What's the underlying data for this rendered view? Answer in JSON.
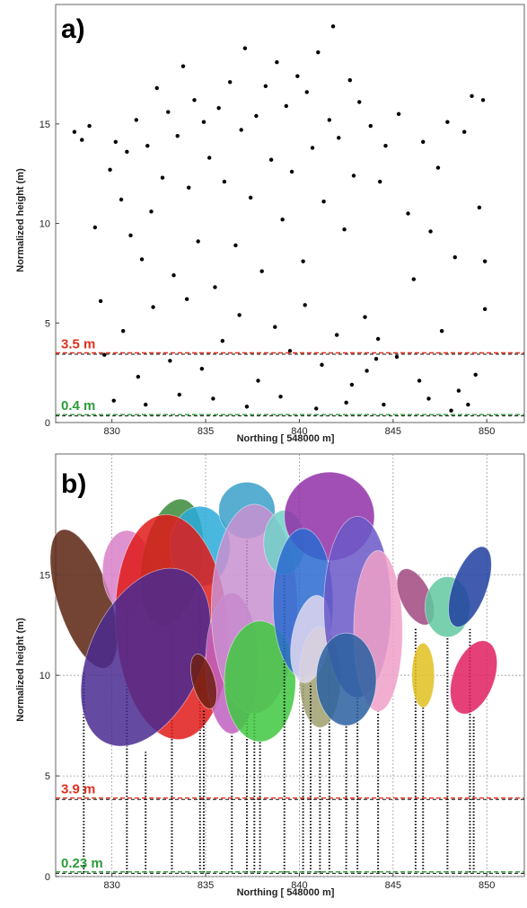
{
  "chart_data": [
    {
      "panel": "a)",
      "type": "scatter",
      "xlabel": "Northing [ 548000 m]",
      "ylabel": "Normalized height (m)",
      "xlim": [
        827,
        852
      ],
      "ylim": [
        0,
        21
      ],
      "xticks": [
        830,
        835,
        840,
        845,
        850
      ],
      "yticks": [
        0,
        5,
        10,
        15
      ],
      "grid": false,
      "point_color": "#000000",
      "thresholds": [
        {
          "label": "3.5 m",
          "value": 3.5,
          "color": "#e0301e"
        },
        {
          "label": "0.4 m",
          "value": 0.4,
          "color": "#2e9a3a"
        }
      ],
      "points": [
        [
          828.0,
          14.6
        ],
        [
          828.4,
          14.2
        ],
        [
          828.8,
          14.9
        ],
        [
          829.1,
          9.8
        ],
        [
          829.4,
          6.1
        ],
        [
          829.6,
          3.4
        ],
        [
          829.9,
          12.7
        ],
        [
          830.2,
          14.1
        ],
        [
          830.5,
          11.2
        ],
        [
          830.8,
          13.6
        ],
        [
          831.0,
          9.4
        ],
        [
          831.3,
          15.2
        ],
        [
          831.6,
          8.2
        ],
        [
          831.9,
          13.9
        ],
        [
          832.1,
          10.6
        ],
        [
          832.4,
          16.8
        ],
        [
          832.7,
          12.3
        ],
        [
          833.0,
          15.6
        ],
        [
          833.3,
          7.4
        ],
        [
          833.5,
          14.4
        ],
        [
          833.8,
          17.9
        ],
        [
          834.1,
          11.8
        ],
        [
          834.4,
          16.2
        ],
        [
          834.6,
          9.1
        ],
        [
          834.9,
          15.1
        ],
        [
          835.2,
          13.3
        ],
        [
          835.5,
          6.8
        ],
        [
          835.7,
          15.8
        ],
        [
          836.0,
          12.1
        ],
        [
          836.3,
          17.1
        ],
        [
          836.6,
          8.9
        ],
        [
          836.9,
          14.7
        ],
        [
          837.1,
          18.8
        ],
        [
          837.4,
          11.3
        ],
        [
          837.7,
          15.4
        ],
        [
          838.0,
          7.6
        ],
        [
          838.2,
          16.9
        ],
        [
          838.5,
          13.2
        ],
        [
          838.8,
          18.1
        ],
        [
          839.1,
          10.2
        ],
        [
          839.3,
          15.9
        ],
        [
          839.6,
          12.6
        ],
        [
          839.9,
          17.4
        ],
        [
          840.2,
          8.1
        ],
        [
          840.4,
          16.6
        ],
        [
          840.7,
          13.8
        ],
        [
          841.0,
          18.6
        ],
        [
          841.3,
          11.1
        ],
        [
          841.6,
          15.2
        ],
        [
          841.8,
          19.9
        ],
        [
          842.1,
          14.3
        ],
        [
          842.4,
          9.7
        ],
        [
          842.7,
          17.2
        ],
        [
          842.9,
          12.4
        ],
        [
          843.2,
          16.1
        ],
        [
          843.5,
          5.3
        ],
        [
          843.8,
          14.9
        ],
        [
          844.1,
          3.2
        ],
        [
          844.3,
          12.1
        ],
        [
          844.6,
          13.9
        ],
        [
          845.3,
          15.5
        ],
        [
          845.8,
          10.5
        ],
        [
          846.1,
          7.2
        ],
        [
          846.6,
          14.1
        ],
        [
          847.0,
          9.6
        ],
        [
          847.4,
          12.8
        ],
        [
          847.9,
          15.1
        ],
        [
          848.3,
          8.3
        ],
        [
          848.8,
          14.6
        ],
        [
          849.2,
          16.4
        ],
        [
          849.6,
          10.8
        ],
        [
          849.8,
          16.2
        ],
        [
          830.6,
          4.6
        ],
        [
          831.4,
          2.3
        ],
        [
          832.2,
          5.8
        ],
        [
          833.1,
          3.1
        ],
        [
          834.0,
          6.2
        ],
        [
          834.8,
          2.7
        ],
        [
          835.9,
          4.1
        ],
        [
          836.8,
          5.4
        ],
        [
          837.8,
          2.1
        ],
        [
          838.7,
          4.8
        ],
        [
          839.5,
          3.6
        ],
        [
          840.3,
          5.9
        ],
        [
          841.2,
          2.9
        ],
        [
          842.0,
          4.4
        ],
        [
          842.8,
          1.9
        ],
        [
          843.6,
          2.6
        ],
        [
          844.2,
          4.2
        ],
        [
          845.2,
          3.3
        ],
        [
          846.4,
          2.1
        ],
        [
          847.6,
          4.6
        ],
        [
          848.5,
          1.6
        ],
        [
          849.4,
          2.4
        ],
        [
          849.9,
          8.1
        ],
        [
          849.9,
          5.7
        ],
        [
          830.1,
          1.1
        ],
        [
          831.8,
          0.9
        ],
        [
          833.6,
          1.4
        ],
        [
          835.4,
          1.2
        ],
        [
          837.2,
          0.8
        ],
        [
          839.0,
          1.3
        ],
        [
          840.9,
          0.7
        ],
        [
          842.5,
          1.0
        ],
        [
          844.5,
          0.9
        ],
        [
          846.9,
          1.2
        ],
        [
          848.1,
          0.6
        ],
        [
          849.0,
          0.9
        ]
      ]
    },
    {
      "panel": "b)",
      "type": "scatter",
      "xlabel": "Northing [ 548000 m]",
      "ylabel": "Normalized height (m)",
      "xlim": [
        827,
        852
      ],
      "ylim": [
        0,
        21
      ],
      "xticks": [
        830,
        835,
        840,
        845,
        850
      ],
      "yticks": [
        0,
        5,
        10,
        15
      ],
      "grid": true,
      "thresholds": [
        {
          "label": "3.9 m",
          "value": 3.9,
          "color": "#e0301e"
        },
        {
          "label": "0.23 m",
          "value": 0.23,
          "color": "#2e9a3a"
        }
      ],
      "crowns": [
        {
          "cx": 828.5,
          "cy": 13.8,
          "rx": 1.4,
          "ry": 3.6,
          "rot": -18,
          "color": "#5a2310"
        },
        {
          "cx": 830.8,
          "cy": 15.2,
          "rx": 1.3,
          "ry": 2.0,
          "rot": 0,
          "color": "#d880c8"
        },
        {
          "cx": 833.2,
          "cy": 15.6,
          "rx": 1.6,
          "ry": 3.2,
          "rot": 10,
          "color": "#3a8a3a"
        },
        {
          "cx": 834.7,
          "cy": 16.4,
          "rx": 1.6,
          "ry": 2.0,
          "rot": 0,
          "color": "#2aaad8"
        },
        {
          "cx": 833.2,
          "cy": 12.4,
          "rx": 3.0,
          "ry": 5.6,
          "rot": -4,
          "color": "#e01a1a"
        },
        {
          "cx": 831.8,
          "cy": 10.9,
          "rx": 3.0,
          "ry": 4.7,
          "rot": 25,
          "color": "#4a2a90"
        },
        {
          "cx": 837.2,
          "cy": 18.2,
          "rx": 1.5,
          "ry": 1.4,
          "rot": 0,
          "color": "#3aa0c8"
        },
        {
          "cx": 836.4,
          "cy": 10.6,
          "rx": 1.4,
          "ry": 3.5,
          "rot": 0,
          "color": "#c060c0"
        },
        {
          "cx": 837.6,
          "cy": 13.3,
          "rx": 2.3,
          "ry": 5.2,
          "rot": 0,
          "color": "#c890d0"
        },
        {
          "cx": 837.9,
          "cy": 9.7,
          "rx": 1.9,
          "ry": 3.0,
          "rot": 0,
          "color": "#40c840"
        },
        {
          "cx": 839.2,
          "cy": 16.6,
          "rx": 1.1,
          "ry": 1.6,
          "rot": 0,
          "color": "#70d0c8"
        },
        {
          "cx": 841.6,
          "cy": 17.9,
          "rx": 2.4,
          "ry": 2.2,
          "rot": 0,
          "color": "#9030a8"
        },
        {
          "cx": 840.2,
          "cy": 13.6,
          "rx": 1.6,
          "ry": 3.7,
          "rot": 0,
          "color": "#2a6ad0"
        },
        {
          "cx": 841.1,
          "cy": 9.9,
          "rx": 1.1,
          "ry": 2.5,
          "rot": 0,
          "color": "#a0a070"
        },
        {
          "cx": 840.6,
          "cy": 11.8,
          "rx": 1.0,
          "ry": 2.2,
          "rot": 10,
          "color": "#e0d8f0"
        },
        {
          "cx": 843.1,
          "cy": 13.4,
          "rx": 1.8,
          "ry": 4.5,
          "rot": 0,
          "color": "#6a58c8"
        },
        {
          "cx": 844.2,
          "cy": 12.2,
          "rx": 1.3,
          "ry": 4.0,
          "rot": 0,
          "color": "#f0a0c8"
        },
        {
          "cx": 842.5,
          "cy": 9.8,
          "rx": 1.6,
          "ry": 2.3,
          "rot": 0,
          "color": "#2a60a0"
        },
        {
          "cx": 846.2,
          "cy": 13.9,
          "rx": 0.8,
          "ry": 1.5,
          "rot": -25,
          "color": "#a04880"
        },
        {
          "cx": 847.9,
          "cy": 13.4,
          "rx": 1.2,
          "ry": 1.5,
          "rot": 0,
          "color": "#60c8a0"
        },
        {
          "cx": 849.1,
          "cy": 14.4,
          "rx": 0.9,
          "ry": 2.1,
          "rot": 20,
          "color": "#2040a0"
        },
        {
          "cx": 846.6,
          "cy": 10.0,
          "rx": 0.6,
          "ry": 1.6,
          "rot": 0,
          "color": "#e0c020"
        },
        {
          "cx": 849.3,
          "cy": 9.9,
          "rx": 1.1,
          "ry": 1.9,
          "rot": 20,
          "color": "#e02060"
        },
        {
          "cx": 834.9,
          "cy": 9.7,
          "rx": 0.6,
          "ry": 1.4,
          "rot": -15,
          "color": "#702010"
        }
      ]
    }
  ]
}
